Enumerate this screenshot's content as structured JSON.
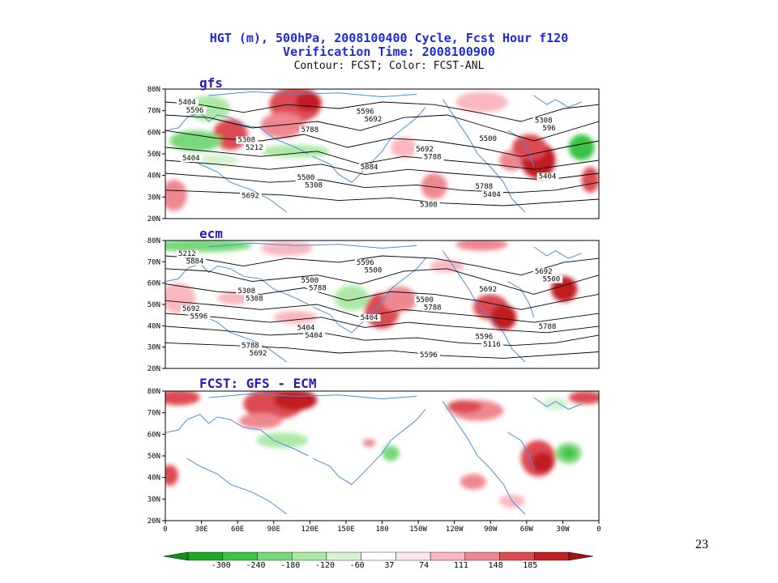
{
  "title": {
    "line1": "HGT (m), 500hPa, 2008100400 Cycle, Fcst Hour f120",
    "line2": "Verification Time: 2008100900",
    "line3": "Contour: FCST; Color: FCST-ANL"
  },
  "colors": {
    "title": "#1f2bd6",
    "panel_label": "#2a18b8",
    "coastline": "#4a8fe0",
    "contour": "#000000",
    "positive_scale": [
      "#ffe8ec",
      "#f9b8c0",
      "#ee8890",
      "#dc4b52",
      "#c01f24"
    ],
    "negative_scale": [
      "#1fa829",
      "#3cc246",
      "#78d87a",
      "#aee8a8",
      "#d6f3d0"
    ]
  },
  "panels": [
    {
      "label": "gfs",
      "lat_ticks": [
        "80N",
        "70N",
        "60N",
        "50N",
        "40N",
        "30N",
        "20N"
      ],
      "contour_labels": [
        "5404",
        "5308",
        "5500",
        "5596",
        "5692",
        "5788",
        "5308",
        "5404",
        "5692",
        "5788",
        "5884",
        "5308",
        "5500",
        "5404",
        "5596",
        "5212",
        "5308",
        "5692",
        "5788",
        "5404",
        "596"
      ]
    },
    {
      "label": "ecm",
      "lat_ticks": [
        "80N",
        "70N",
        "60N",
        "50N",
        "40N",
        "30N",
        "20N"
      ],
      "contour_labels": [
        "5212",
        "5308",
        "5404",
        "5596",
        "5500",
        "5596",
        "5692",
        "5692",
        "5788",
        "5500",
        "5404",
        "5596",
        "5692",
        "5788",
        "5884",
        "5308",
        "5404",
        "5500",
        "5788",
        "5116",
        "5500",
        "5596",
        "5692",
        "5788"
      ]
    },
    {
      "label": "FCST: GFS - ECM",
      "lat_ticks": [
        "80N",
        "70N",
        "60N",
        "50N",
        "40N",
        "30N",
        "20N"
      ],
      "lon_ticks": [
        "0",
        "30E",
        "60E",
        "90E",
        "120E",
        "150E",
        "180",
        "150W",
        "120W",
        "90W",
        "60W",
        "30W",
        "0"
      ]
    }
  ],
  "colorbar": {
    "labels": [
      "-300",
      "-240",
      "-180",
      "-120",
      "-60",
      "37",
      "74",
      "111",
      "148",
      "185"
    ]
  },
  "page_number": "23"
}
